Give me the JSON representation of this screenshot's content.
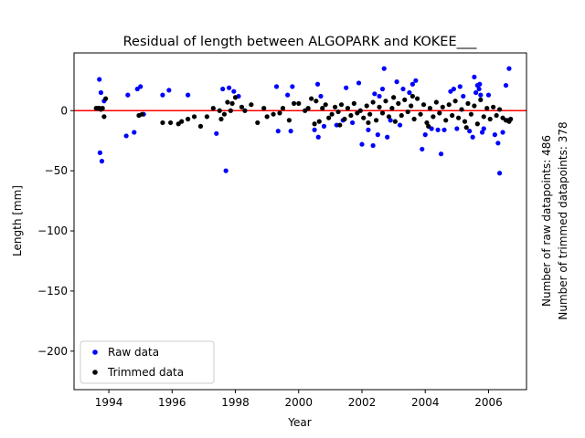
{
  "chart_data": {
    "type": "scatter",
    "title": "Residual of length between ALGOPARK and KOKEE___",
    "xlabel": "Year",
    "ylabel": "Length [mm]",
    "xlim": [
      1992.9,
      2007.2
    ],
    "ylim": [
      -232,
      48
    ],
    "xticks": [
      1994,
      1996,
      1998,
      2000,
      2002,
      2004,
      2006
    ],
    "yticks": [
      0,
      -50,
      -100,
      -150,
      -200
    ],
    "ytick_labels": [
      "0",
      "−50",
      "−100",
      "−150",
      "−200"
    ],
    "grid": false,
    "legend_position": "lower-left",
    "reference_line": {
      "y": 0,
      "color": "#ff0000"
    },
    "side_text": [
      "Number of raw datapoints: 486",
      "Number of trimmed datapoints: 378"
    ],
    "series": [
      {
        "name": "Raw data",
        "color": "#0000ff",
        "points": [
          [
            1993.7,
            26
          ],
          [
            1993.75,
            15
          ],
          [
            1993.72,
            -35
          ],
          [
            1993.78,
            -42
          ],
          [
            1993.85,
            8
          ],
          [
            1994.55,
            -21
          ],
          [
            1994.6,
            13
          ],
          [
            1994.8,
            -18
          ],
          [
            1994.9,
            18
          ],
          [
            1995.0,
            20
          ],
          [
            1995.1,
            -3
          ],
          [
            1995.7,
            13
          ],
          [
            1995.9,
            17
          ],
          [
            1996.5,
            13
          ],
          [
            1997.4,
            -19
          ],
          [
            1997.6,
            18
          ],
          [
            1997.7,
            -50
          ],
          [
            1997.8,
            19
          ],
          [
            1997.95,
            16
          ],
          [
            1998.1,
            12
          ],
          [
            1999.3,
            20
          ],
          [
            1999.35,
            -17
          ],
          [
            1999.65,
            13
          ],
          [
            1999.8,
            20
          ],
          [
            1999.75,
            -17
          ],
          [
            2000.5,
            -16
          ],
          [
            2000.6,
            22
          ],
          [
            2000.62,
            -22
          ],
          [
            2000.7,
            12
          ],
          [
            2000.8,
            -13
          ],
          [
            2001.2,
            -12
          ],
          [
            2001.4,
            -8
          ],
          [
            2001.5,
            19
          ],
          [
            2001.7,
            -10
          ],
          [
            2001.9,
            23
          ],
          [
            2002.0,
            -28
          ],
          [
            2002.2,
            -16
          ],
          [
            2002.35,
            -29
          ],
          [
            2002.5,
            -20
          ],
          [
            2002.55,
            12
          ],
          [
            2002.65,
            18
          ],
          [
            2002.7,
            35
          ],
          [
            2002.8,
            -22
          ],
          [
            2002.9,
            -8
          ],
          [
            2003.1,
            24
          ],
          [
            2003.3,
            18
          ],
          [
            2003.5,
            15
          ],
          [
            2003.6,
            22
          ],
          [
            2003.7,
            25
          ],
          [
            2003.9,
            -32
          ],
          [
            2004.0,
            -20
          ],
          [
            2004.2,
            -15
          ],
          [
            2004.4,
            -16
          ],
          [
            2004.5,
            -36
          ],
          [
            2004.6,
            -16
          ],
          [
            2004.8,
            16
          ],
          [
            2004.9,
            18
          ],
          [
            2005.0,
            -15
          ],
          [
            2005.1,
            20
          ],
          [
            2005.2,
            12
          ],
          [
            2005.4,
            -17
          ],
          [
            2005.5,
            -22
          ],
          [
            2005.55,
            28
          ],
          [
            2005.6,
            15
          ],
          [
            2005.65,
            21
          ],
          [
            2005.7,
            18
          ],
          [
            2005.72,
            22
          ],
          [
            2005.75,
            13
          ],
          [
            2005.8,
            -18
          ],
          [
            2005.85,
            -15
          ],
          [
            2006.0,
            13
          ],
          [
            2006.2,
            -20
          ],
          [
            2006.3,
            -27
          ],
          [
            2006.35,
            -52
          ],
          [
            2006.45,
            -18
          ],
          [
            2006.55,
            21
          ],
          [
            2006.65,
            35
          ],
          [
            2006.6,
            -8
          ],
          [
            2003.2,
            -12
          ],
          [
            2002.4,
            14
          ]
        ]
      },
      {
        "name": "Trimmed data",
        "color": "#000000",
        "points": [
          [
            1993.6,
            2
          ],
          [
            1993.65,
            2
          ],
          [
            1993.7,
            2
          ],
          [
            1993.75,
            1
          ],
          [
            1993.8,
            2
          ],
          [
            1993.85,
            -5
          ],
          [
            1993.9,
            10
          ],
          [
            1994.95,
            -4
          ],
          [
            1995.05,
            -3
          ],
          [
            1995.7,
            -10
          ],
          [
            1995.95,
            -10
          ],
          [
            1996.2,
            -11
          ],
          [
            1996.3,
            -9
          ],
          [
            1996.5,
            -7
          ],
          [
            1996.7,
            -5
          ],
          [
            1996.9,
            -13
          ],
          [
            1997.1,
            -5
          ],
          [
            1997.3,
            2
          ],
          [
            1997.5,
            0
          ],
          [
            1997.55,
            -7
          ],
          [
            1997.65,
            -3
          ],
          [
            1997.75,
            7
          ],
          [
            1997.85,
            0
          ],
          [
            1997.9,
            6
          ],
          [
            1998.0,
            11
          ],
          [
            1998.2,
            3
          ],
          [
            1998.3,
            0
          ],
          [
            1998.5,
            5
          ],
          [
            1998.7,
            -10
          ],
          [
            1998.9,
            2
          ],
          [
            1999.0,
            -5
          ],
          [
            1999.2,
            -3
          ],
          [
            1999.4,
            -2
          ],
          [
            1999.5,
            2
          ],
          [
            1999.7,
            -8
          ],
          [
            1999.85,
            6
          ],
          [
            2000.0,
            6
          ],
          [
            2000.2,
            0
          ],
          [
            2000.3,
            2
          ],
          [
            2000.4,
            10
          ],
          [
            2000.55,
            8
          ],
          [
            2000.65,
            -9
          ],
          [
            2000.75,
            2
          ],
          [
            2000.85,
            5
          ],
          [
            2000.95,
            -6
          ],
          [
            2001.05,
            -3
          ],
          [
            2001.15,
            3
          ],
          [
            2001.25,
            -1
          ],
          [
            2001.35,
            5
          ],
          [
            2001.45,
            -7
          ],
          [
            2001.55,
            2
          ],
          [
            2001.65,
            -4
          ],
          [
            2001.75,
            6
          ],
          [
            2001.85,
            -2
          ],
          [
            2001.95,
            0
          ],
          [
            2002.05,
            -6
          ],
          [
            2002.15,
            4
          ],
          [
            2002.25,
            -3
          ],
          [
            2002.35,
            7
          ],
          [
            2002.45,
            -8
          ],
          [
            2002.55,
            3
          ],
          [
            2002.65,
            -2
          ],
          [
            2002.75,
            8
          ],
          [
            2002.85,
            -5
          ],
          [
            2002.95,
            2
          ],
          [
            2003.05,
            -9
          ],
          [
            2003.15,
            6
          ],
          [
            2003.25,
            -4
          ],
          [
            2003.35,
            9
          ],
          [
            2003.45,
            -1
          ],
          [
            2003.55,
            4
          ],
          [
            2003.65,
            -7
          ],
          [
            2003.75,
            10
          ],
          [
            2003.85,
            -3
          ],
          [
            2003.95,
            5
          ],
          [
            2004.05,
            -10
          ],
          [
            2004.15,
            2
          ],
          [
            2004.25,
            -5
          ],
          [
            2004.35,
            7
          ],
          [
            2004.45,
            -2
          ],
          [
            2004.55,
            3
          ],
          [
            2004.65,
            -8
          ],
          [
            2004.75,
            5
          ],
          [
            2004.85,
            -4
          ],
          [
            2004.95,
            8
          ],
          [
            2005.05,
            -6
          ],
          [
            2005.15,
            1
          ],
          [
            2005.25,
            -9
          ],
          [
            2005.35,
            6
          ],
          [
            2005.45,
            -3
          ],
          [
            2005.55,
            4
          ],
          [
            2005.65,
            -11
          ],
          [
            2005.75,
            9
          ],
          [
            2005.85,
            -5
          ],
          [
            2005.95,
            2
          ],
          [
            2006.05,
            -7
          ],
          [
            2006.15,
            3
          ],
          [
            2006.25,
            -4
          ],
          [
            2006.35,
            1
          ],
          [
            2006.45,
            -6
          ],
          [
            2006.55,
            -8
          ],
          [
            2006.65,
            -9
          ],
          [
            2006.7,
            -7
          ],
          [
            2001.3,
            -12
          ],
          [
            2003.0,
            11
          ],
          [
            2004.1,
            -13
          ],
          [
            2005.3,
            -14
          ],
          [
            2002.2,
            -10
          ],
          [
            2003.6,
            12
          ],
          [
            2000.5,
            -11
          ]
        ]
      }
    ]
  }
}
